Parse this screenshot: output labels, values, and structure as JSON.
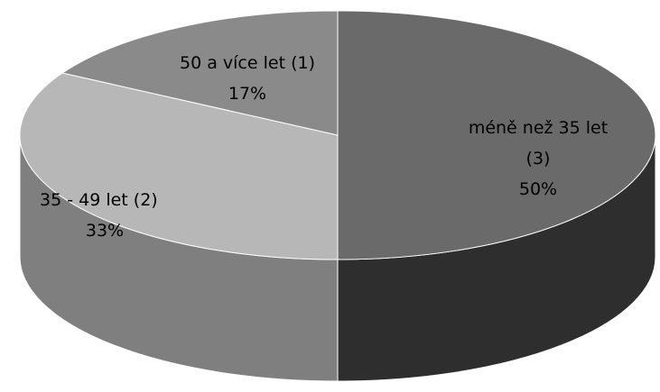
{
  "chart_data": {
    "type": "pie",
    "style": "3d",
    "title": "",
    "slices": [
      {
        "name": "méně než 35 let",
        "count": 3,
        "percent": 50,
        "count_text": "(3)",
        "percent_text": "50%",
        "color": "#6a6a6a",
        "side_color": "#2e2e2e"
      },
      {
        "name": "35 - 49 let",
        "count": 2,
        "percent": 33,
        "count_text": "(2)",
        "percent_text": "33%",
        "color": "#b7b7b7",
        "side_color": "#7f7f7f"
      },
      {
        "name": "50 a více let",
        "count": 1,
        "percent": 17,
        "count_text": "(1)",
        "percent_text": "17%",
        "color": "#8a8a8a",
        "side_color": "#5a5a5a"
      }
    ]
  }
}
